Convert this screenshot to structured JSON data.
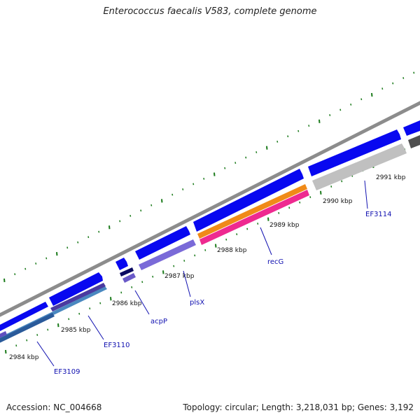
{
  "title": "Enterococcus faecalis V583, complete genome",
  "accession": "Accession: NC_004668",
  "topology": "Topology: circular; Length: 3,218,031 bp; Genes: 3,192",
  "colors": {
    "backbone": "#8c8c8c",
    "forward_gene": "#0808f0",
    "tick": "#1a7a1a",
    "label": "#1010b0",
    "acpP_dark": "#0a0a60",
    "plsX": "#7a6ad8",
    "recG_orange": "#f08a18",
    "recG_pink": "#ee2a90",
    "EF3110": "#4a3aa0",
    "EF3109": "#4a88c0",
    "EF3114": "#c0c0c0",
    "dark_gray": "#505050"
  },
  "kbp_labels": [
    "2984 kbp",
    "2985 kbp",
    "2986 kbp",
    "2987 kbp",
    "2988 kbp",
    "2989 kbp",
    "2990 kbp",
    "2991 kbp"
  ],
  "gene_labels": [
    "EF3109",
    "EF3110",
    "acpP",
    "plsX",
    "recG",
    "EF3114"
  ]
}
